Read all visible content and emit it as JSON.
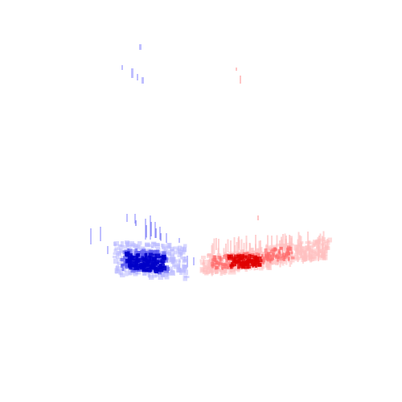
{
  "background_color": "#ffffff",
  "clusters": [
    {
      "id": "blue",
      "color_dark": "#0000c8",
      "color_mid": "#5a5af0",
      "color_light": "#b8b8ff"
    },
    {
      "id": "red",
      "color_dark": "#e00000",
      "color_mid": "#ff6a6a",
      "color_light": "#ffc0c0"
    }
  ]
}
